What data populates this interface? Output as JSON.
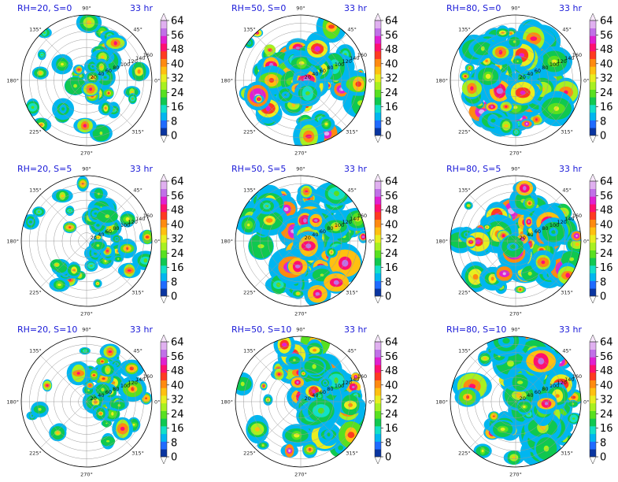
{
  "figure": {
    "time_label": "33 hr",
    "panels": [
      {
        "title": "RH=20, S=0",
        "rh": 20,
        "shear": 0
      },
      {
        "title": "RH=50, S=0",
        "rh": 50,
        "shear": 0
      },
      {
        "title": "RH=80, S=0",
        "rh": 80,
        "shear": 0
      },
      {
        "title": "RH=20, S=5",
        "rh": 20,
        "shear": 5
      },
      {
        "title": "RH=50, S=5",
        "rh": 50,
        "shear": 5
      },
      {
        "title": "RH=80, S=5",
        "rh": 80,
        "shear": 5
      },
      {
        "title": "RH=20, S=10",
        "rh": 20,
        "shear": 10
      },
      {
        "title": "RH=50, S=10",
        "rh": 50,
        "shear": 10
      },
      {
        "title": "RH=80, S=10",
        "rh": 80,
        "shear": 10
      }
    ]
  },
  "chart_data": {
    "type": "heatmap",
    "projection": "polar",
    "angle_ticks": [
      "0°",
      "45°",
      "90°",
      "135°",
      "180°",
      "225°",
      "270°",
      "315°"
    ],
    "radial_ticks": [
      20,
      40,
      60,
      80,
      100,
      120,
      140,
      160
    ],
    "colorbar": {
      "ticks": [
        0,
        8,
        16,
        24,
        32,
        40,
        48,
        56,
        64
      ],
      "extend": "both",
      "colors": [
        "#101048",
        "#0a35a0",
        "#1f6bff",
        "#00b6f0",
        "#12e0c8",
        "#10c850",
        "#58e020",
        "#a8f020",
        "#e8ee20",
        "#ffc010",
        "#ff8a10",
        "#ff3a20",
        "#ff1070",
        "#e020d0",
        "#c070e8",
        "#e0b0f0",
        "#f8e8fc"
      ]
    },
    "grid": true
  }
}
